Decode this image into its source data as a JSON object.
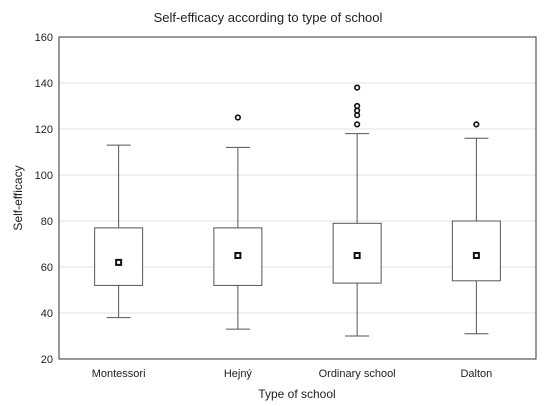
{
  "chart_data": {
    "type": "box",
    "title": "Self-efficacy according to type of school",
    "xlabel": "Type of school",
    "ylabel": "Self-efficacy",
    "ylim": [
      20,
      160
    ],
    "yticks": [
      20,
      40,
      60,
      80,
      100,
      120,
      140,
      160
    ],
    "grid": true,
    "categories": [
      "Montessori",
      "Hejný",
      "Ordinary school",
      "Dalton"
    ],
    "boxes": [
      {
        "category": "Montessori",
        "whisker_low": 38,
        "q1": 52,
        "center": 62,
        "q3": 77,
        "whisker_high": 113,
        "outliers": []
      },
      {
        "category": "Hejný",
        "whisker_low": 33,
        "q1": 52,
        "center": 65,
        "q3": 77,
        "whisker_high": 112,
        "outliers": [
          125
        ]
      },
      {
        "category": "Ordinary school",
        "whisker_low": 30,
        "q1": 53,
        "center": 65,
        "q3": 79,
        "whisker_high": 118,
        "outliers": [
          122,
          126,
          128,
          130,
          138
        ]
      },
      {
        "category": "Dalton",
        "whisker_low": 31,
        "q1": 54,
        "center": 65,
        "q3": 80,
        "whisker_high": 116,
        "outliers": [
          122
        ]
      }
    ]
  }
}
